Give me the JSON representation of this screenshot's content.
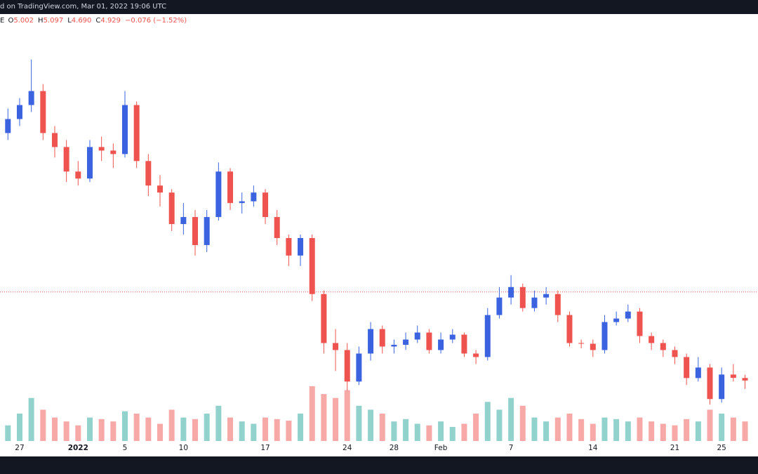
{
  "chart_data": {
    "type": "candlestick",
    "title": "d on TradingView.com, Mar 01, 2022 19:06 UTC",
    "symbol": "E",
    "ohlc_legend": [
      {
        "label": "O",
        "value": "5.002"
      },
      {
        "label": "H",
        "value": "5.097"
      },
      {
        "label": "L",
        "value": "4.690"
      },
      {
        "label": "C",
        "value": "4.929"
      }
    ],
    "change": "−0.076 (−1.52%)",
    "categories": [
      null,
      "27",
      null,
      null,
      null,
      null,
      "2022",
      null,
      null,
      null,
      "5",
      null,
      null,
      null,
      null,
      "10",
      null,
      null,
      null,
      null,
      null,
      null,
      "17",
      null,
      null,
      null,
      null,
      null,
      null,
      "24",
      null,
      null,
      null,
      "28",
      null,
      null,
      null,
      "Feb",
      null,
      null,
      null,
      null,
      null,
      "7",
      null,
      null,
      null,
      null,
      null,
      null,
      "14",
      null,
      null,
      null,
      null,
      null,
      null,
      "21",
      null,
      null,
      null,
      "25",
      null,
      null
    ],
    "open": [
      12.0,
      12.4,
      12.8,
      13.2,
      12.0,
      11.6,
      10.9,
      10.7,
      11.6,
      11.5,
      11.4,
      12.8,
      11.2,
      10.5,
      10.3,
      9.4,
      9.6,
      8.8,
      9.6,
      10.9,
      10.0,
      10.05,
      10.3,
      9.6,
      9.0,
      8.5,
      9.0,
      7.4,
      6.0,
      5.8,
      4.9,
      5.7,
      6.4,
      5.9,
      5.95,
      6.1,
      6.3,
      5.8,
      6.1,
      6.24,
      5.7,
      5.6,
      6.8,
      7.3,
      7.6,
      7.0,
      7.3,
      7.4,
      6.8,
      6.0,
      5.98,
      5.8,
      6.6,
      6.7,
      6.9,
      6.2,
      6.0,
      5.8,
      5.6,
      5.0,
      5.3,
      4.4,
      5.1,
      5.002
    ],
    "high": [
      12.7,
      13.0,
      14.1,
      13.4,
      12.2,
      11.8,
      11.2,
      11.8,
      11.9,
      11.7,
      13.2,
      12.9,
      11.4,
      10.8,
      10.4,
      10.0,
      9.8,
      9.8,
      11.16,
      11.0,
      10.3,
      10.5,
      10.4,
      9.8,
      9.1,
      9.1,
      9.1,
      7.5,
      6.4,
      6.0,
      5.9,
      6.6,
      6.5,
      6.1,
      6.3,
      6.5,
      6.4,
      6.3,
      6.4,
      6.3,
      5.8,
      7.0,
      7.6,
      7.94,
      7.7,
      7.5,
      7.6,
      7.5,
      6.9,
      6.1,
      6.1,
      6.8,
      6.9,
      7.1,
      7.0,
      6.3,
      6.1,
      5.9,
      5.7,
      5.6,
      5.4,
      5.3,
      5.4,
      5.097
    ],
    "low": [
      11.8,
      12.2,
      12.6,
      11.8,
      11.3,
      10.6,
      10.5,
      10.6,
      11.2,
      11.0,
      11.3,
      11.0,
      10.2,
      9.9,
      9.2,
      9.1,
      8.5,
      8.6,
      9.5,
      9.8,
      9.7,
      9.9,
      9.4,
      8.8,
      8.2,
      8.2,
      7.2,
      5.7,
      5.2,
      4.64,
      4.8,
      5.5,
      5.7,
      5.7,
      5.8,
      6.0,
      5.7,
      5.7,
      6.0,
      5.6,
      5.4,
      5.5,
      6.7,
      7.1,
      6.9,
      6.9,
      7.1,
      6.6,
      5.9,
      5.85,
      5.6,
      5.7,
      6.5,
      6.6,
      6.0,
      5.8,
      5.6,
      5.4,
      4.8,
      4.9,
      4.24,
      4.3,
      4.9,
      4.69
    ],
    "close": [
      12.4,
      12.8,
      13.2,
      12.0,
      11.6,
      10.9,
      10.7,
      11.6,
      11.5,
      11.4,
      12.8,
      11.2,
      10.5,
      10.3,
      9.4,
      9.6,
      8.8,
      9.6,
      10.9,
      10.0,
      10.05,
      10.3,
      9.6,
      9.0,
      8.5,
      9.0,
      7.4,
      6.0,
      5.8,
      4.9,
      5.7,
      6.4,
      5.9,
      5.95,
      6.1,
      6.3,
      5.8,
      6.1,
      6.24,
      5.7,
      5.6,
      6.8,
      7.3,
      7.6,
      7.0,
      7.3,
      7.4,
      6.8,
      6.0,
      5.98,
      5.8,
      6.6,
      6.7,
      6.9,
      6.2,
      6.0,
      5.8,
      5.6,
      5.0,
      5.3,
      4.4,
      5.1,
      5.005,
      4.929
    ],
    "volume": [
      20,
      35,
      55,
      40,
      30,
      25,
      20,
      30,
      28,
      25,
      38,
      35,
      30,
      22,
      40,
      30,
      28,
      35,
      45,
      30,
      25,
      22,
      30,
      28,
      26,
      35,
      70,
      60,
      55,
      65,
      45,
      40,
      35,
      25,
      28,
      22,
      20,
      25,
      18,
      22,
      35,
      50,
      40,
      55,
      45,
      30,
      25,
      30,
      35,
      28,
      22,
      30,
      28,
      25,
      30,
      25,
      22,
      20,
      28,
      25,
      40,
      35,
      30,
      25
    ],
    "ylim": [
      2.8,
      15.4
    ],
    "price_line": 7.46,
    "up_color": "#3b63e0",
    "down_color": "#ef5350",
    "volume_up_color": "#26a69a",
    "volume_down_color": "#ef5350"
  }
}
